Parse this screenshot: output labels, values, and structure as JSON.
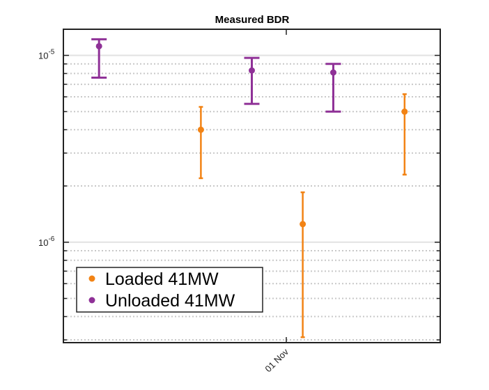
{
  "chart_data": {
    "type": "scatter",
    "title": "Measured BDR",
    "xlabel": "",
    "ylabel": "",
    "y_scale": "log",
    "ylim": [
      2.9e-07,
      1.38e-05
    ],
    "x_tick_labels": [
      "01 Nov"
    ],
    "y_tick_labels": [
      {
        "base": "10",
        "exp": "-5",
        "value": 1e-05
      },
      {
        "base": "10",
        "exp": "-6",
        "value": 1e-06
      }
    ],
    "grid": "y major and minor (dotted minor)",
    "legend_position": "bottom-left",
    "series": [
      {
        "name": "Loaded 41MW",
        "color": "#f28314",
        "points": [
          {
            "x": 1,
            "y": 4e-06,
            "ylow": 2.2e-06,
            "yhigh": 5.3e-06
          },
          {
            "x": 2,
            "y": 1.25e-06,
            "ylow": 3.1e-07,
            "yhigh": 1.85e-06
          },
          {
            "x": 3,
            "y": 5e-06,
            "ylow": 2.3e-06,
            "yhigh": 6.2e-06
          }
        ]
      },
      {
        "name": "Unloaded 41MW",
        "color": "#8f3197",
        "points": [
          {
            "x": 0,
            "y": 1.12e-05,
            "ylow": 7.6e-06,
            "yhigh": 1.22e-05
          },
          {
            "x": 1.5,
            "y": 8.3e-06,
            "ylow": 5.5e-06,
            "yhigh": 9.7e-06
          },
          {
            "x": 2.3,
            "y": 8.1e-06,
            "ylow": 5e-06,
            "yhigh": 9e-06
          }
        ]
      }
    ]
  }
}
